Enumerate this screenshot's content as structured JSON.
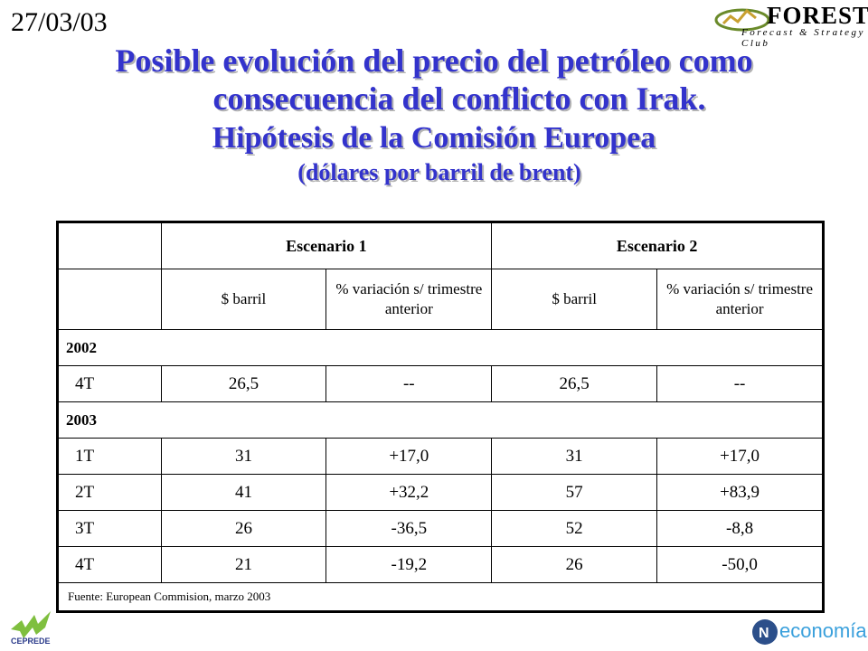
{
  "header": {
    "date": "27/03/03",
    "logo_name": "FOREST",
    "logo_tagline": "Forecast & Strategy Club"
  },
  "title": {
    "line1": "Posible evolución del precio del petróleo como",
    "line2": "consecuencia del conflicto con Irak.",
    "line3": "Hipótesis de la Comisión Europea",
    "line4": "(dólares por barril de brent)"
  },
  "table": {
    "scenario1": "Escenario 1",
    "scenario2": "Escenario 2",
    "sub_price": "$ barril",
    "sub_variation": "% variación s/ trimestre anterior",
    "year2002": "2002",
    "year2003": "2003",
    "rows2002": [
      {
        "q": "4T",
        "s1_price": "26,5",
        "s1_var": "--",
        "s2_price": "26,5",
        "s2_var": "--"
      }
    ],
    "rows2003": [
      {
        "q": "1T",
        "s1_price": "31",
        "s1_var": "+17,0",
        "s2_price": "31",
        "s2_var": "+17,0"
      },
      {
        "q": "2T",
        "s1_price": "41",
        "s1_var": "+32,2",
        "s2_price": "57",
        "s2_var": "+83,9"
      },
      {
        "q": "3T",
        "s1_price": "26",
        "s1_var": "-36,5",
        "s2_price": "52",
        "s2_var": "-8,8"
      },
      {
        "q": "4T",
        "s1_price": "21",
        "s1_var": "-19,2",
        "s2_price": "26",
        "s2_var": "-50,0"
      }
    ],
    "source": "Fuente: European Commision, marzo 2003"
  },
  "footer": {
    "left_logo": "CEPREDE",
    "right_logo": "economía"
  },
  "colors": {
    "title": "#3333cc",
    "title_shadow": "#b3b3b3",
    "cepre_green": "#7fbf3f",
    "neco_blue": "#3aa0dc"
  }
}
